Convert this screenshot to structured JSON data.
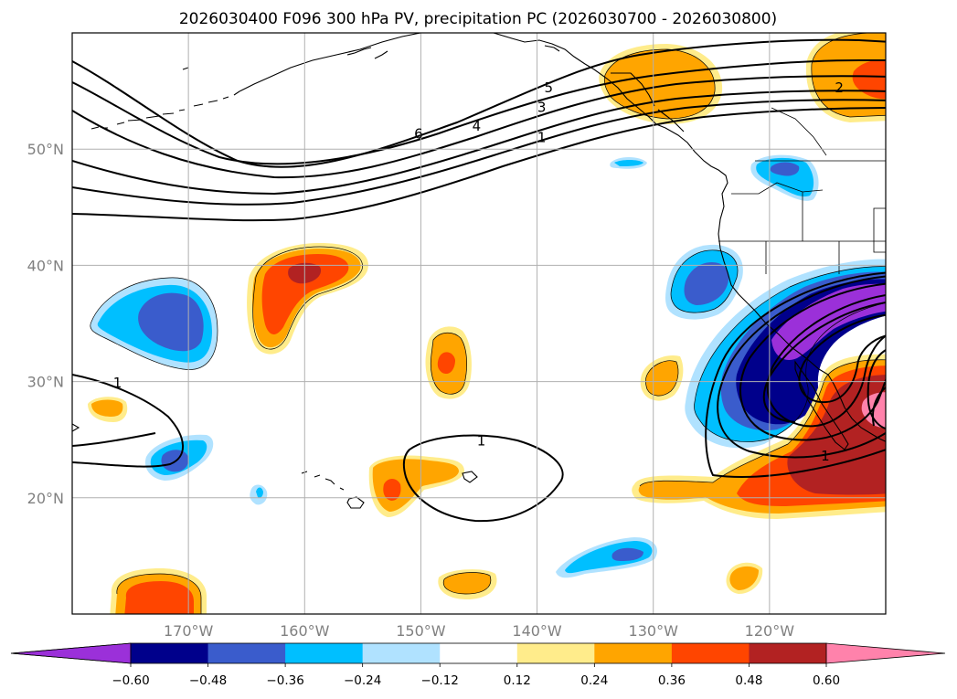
{
  "chart_data": {
    "type": "map",
    "title": "2026030400 F096 300 hPa PV, precipitation PC (2026030700 - 2026030800)",
    "map_extent": {
      "lon_min": -180,
      "lon_max": -110,
      "lat_min": 10,
      "lat_max": 60
    },
    "lon_ticks": [
      {
        "lon": -170,
        "label": "170°W"
      },
      {
        "lon": -160,
        "label": "160°W"
      },
      {
        "lon": -150,
        "label": "150°W"
      },
      {
        "lon": -140,
        "label": "140°W"
      },
      {
        "lon": -130,
        "label": "130°W"
      },
      {
        "lon": -120,
        "label": "120°W"
      }
    ],
    "lat_ticks": [
      {
        "lat": 20,
        "label": "20°N"
      },
      {
        "lat": 30,
        "label": "30°N"
      },
      {
        "lat": 40,
        "label": "40°N"
      },
      {
        "lat": 50,
        "label": "50°N"
      }
    ],
    "colorbar": {
      "levels": [
        -0.6,
        -0.48,
        -0.36,
        -0.24,
        -0.12,
        0.12,
        0.24,
        0.36,
        0.48,
        0.6
      ],
      "tick_labels": [
        "−0.60",
        "−0.48",
        "−0.36",
        "−0.24",
        "−0.12",
        "0.12",
        "0.24",
        "0.36",
        "0.48",
        "0.60"
      ],
      "colors": [
        "#9b30d9",
        "#00008b",
        "#3a5ccc",
        "#00bfff",
        "#b0e2ff",
        "#ffffff",
        "#ffec8b",
        "#ffa500",
        "#ff4500",
        "#b22222",
        "#ff82ab"
      ],
      "extend": "both"
    },
    "pv_contour_labels": [
      {
        "text": "6",
        "lon": -150.2,
        "lat": 51.3
      },
      {
        "text": "5",
        "lon": -139.0,
        "lat": 55.3
      },
      {
        "text": "4",
        "lon": -145.2,
        "lat": 52.0
      },
      {
        "text": "3",
        "lon": -139.6,
        "lat": 53.6
      },
      {
        "text": "1",
        "lon": -139.6,
        "lat": 51.0
      },
      {
        "text": "2",
        "lon": -114.0,
        "lat": 55.3
      },
      {
        "text": "1",
        "lon": -176.1,
        "lat": 29.9
      },
      {
        "text": "1",
        "lon": -144.8,
        "lat": 24.9
      },
      {
        "text": "1",
        "lon": -115.2,
        "lat": 23.6
      }
    ],
    "precip_anomalies": [
      {
        "sign": "negative",
        "center_lon": -172,
        "center_lat": 36,
        "peak": -0.48
      },
      {
        "sign": "positive",
        "center_lon": -159,
        "center_lat": 38,
        "peak": 0.48
      },
      {
        "sign": "positive",
        "center_lon": -147,
        "center_lat": 31,
        "peak": 0.36
      },
      {
        "sign": "negative",
        "center_lon": -171,
        "center_lat": 23,
        "peak": -0.48
      },
      {
        "sign": "positive",
        "center_lon": -152,
        "center_lat": 21,
        "peak": 0.36
      },
      {
        "sign": "positive",
        "center_lon": -174,
        "center_lat": 28,
        "peak": 0.24
      },
      {
        "sign": "positive",
        "center_lon": -169,
        "center_lat": 12,
        "peak": 0.36
      },
      {
        "sign": "negative",
        "center_lon": -134,
        "center_lat": 15,
        "peak": -0.48
      },
      {
        "sign": "positive",
        "center_lon": -146,
        "center_lat": 13,
        "peak": 0.24
      },
      {
        "sign": "positive",
        "center_lon": -132,
        "center_lat": 55,
        "peak": 0.24
      },
      {
        "sign": "positive",
        "center_lon": -113,
        "center_lat": 56,
        "peak": 0.36
      },
      {
        "sign": "negative",
        "center_lon": -120,
        "center_lat": 48,
        "peak": -0.48
      },
      {
        "sign": "negative",
        "center_lon": -127,
        "center_lat": 38,
        "peak": -0.48
      },
      {
        "sign": "negative",
        "center_lon": -118,
        "center_lat": 34,
        "peak": -0.72
      },
      {
        "sign": "positive",
        "center_lon": -114,
        "center_lat": 24,
        "peak": 0.72
      },
      {
        "sign": "positive",
        "center_lon": -127,
        "center_lat": 20,
        "peak": 0.36
      },
      {
        "sign": "positive",
        "center_lon": -122,
        "center_lat": 13,
        "peak": 0.24
      },
      {
        "sign": "positive",
        "center_lon": -130,
        "center_lat": 30,
        "peak": 0.24
      }
    ]
  }
}
